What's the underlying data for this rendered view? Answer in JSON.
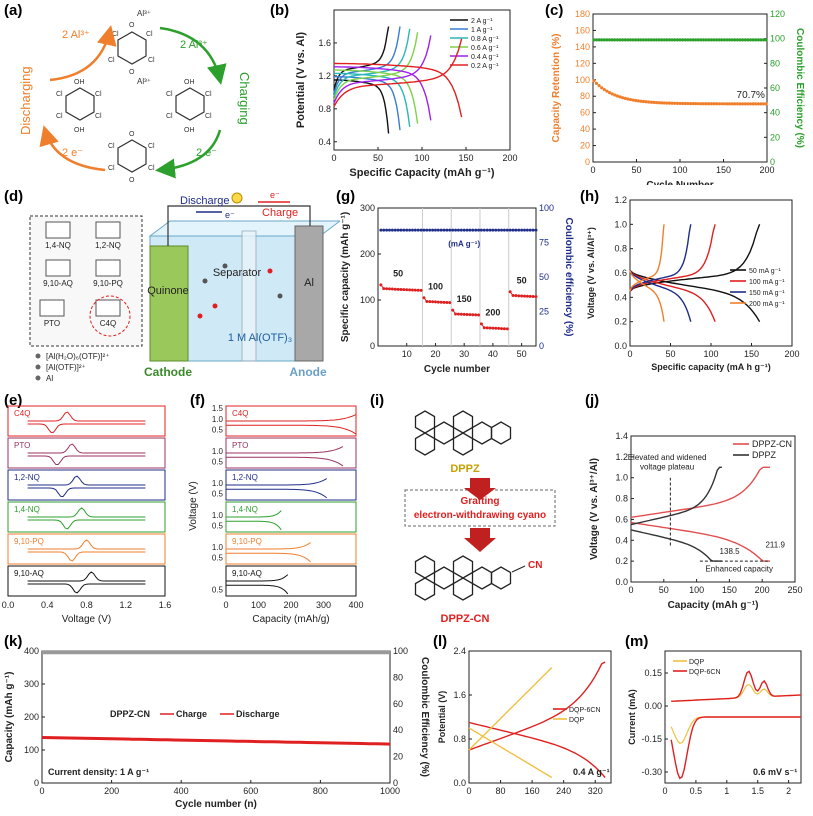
{
  "panels": {
    "a": "(a)",
    "b": "(b)",
    "c": "(c)",
    "d": "(d)",
    "e": "(e)",
    "f": "(f)",
    "g": "(g)",
    "h": "(h)",
    "i": "(i)",
    "j": "(j)",
    "k": "(k)",
    "l": "(l)",
    "m": "(m)"
  },
  "colors": {
    "orange": "#f07f2d",
    "green": "#2ca02c",
    "red": "#e02020",
    "navy": "#1f2d8a",
    "black": "#111111"
  },
  "scheme_a": {
    "discharging": "Discharging",
    "charging": "Charging",
    "al_top_left": "2 Al³⁺",
    "al_top_right": "2 Al³⁺",
    "e_bottom_left": "2 e⁻",
    "e_bottom_right": "2 e⁻",
    "al_complex": "Al³⁺"
  },
  "chart_data": [
    {
      "id": "b",
      "type": "line",
      "title": "",
      "xlabel": "Specific Capacity (mAh g⁻¹)",
      "ylabel": "Potential (V vs. Al)",
      "xlim": [
        0,
        200
      ],
      "ylim": [
        0.3,
        2.0
      ],
      "xticks": [
        0,
        50,
        100,
        150,
        200
      ],
      "yticks": [
        0.4,
        0.8,
        1.2,
        1.6
      ],
      "series": [
        {
          "name": "2 A g⁻¹",
          "color": "#111111",
          "charge_max": 62,
          "discharge_max": 62
        },
        {
          "name": "1 A g⁻¹",
          "color": "#3a7bd5",
          "charge_max": 75,
          "discharge_max": 75
        },
        {
          "name": "0.8 A g⁻¹",
          "color": "#2ab7b7",
          "charge_max": 86,
          "discharge_max": 86
        },
        {
          "name": "0.6 A g⁻¹",
          "color": "#7fd14a",
          "charge_max": 95,
          "discharge_max": 95
        },
        {
          "name": "0.4 A g⁻¹",
          "color": "#a020f0",
          "charge_max": 110,
          "discharge_max": 110
        },
        {
          "name": "0.2 A g⁻¹",
          "color": "#e02020",
          "charge_max": 145,
          "discharge_max": 145
        }
      ]
    },
    {
      "id": "c",
      "type": "scatter",
      "xlabel": "Cycle Number",
      "ylabel": "Capacity Retention (%)",
      "y2label": "Coulombic Efficiency (%)",
      "xlim": [
        0,
        200
      ],
      "ylim": [
        0,
        180
      ],
      "y2lim": [
        0,
        120
      ],
      "xticks": [
        0,
        50,
        100,
        150,
        200
      ],
      "yticks": [
        0,
        20,
        40,
        60,
        80,
        100,
        120,
        140,
        160,
        180
      ],
      "y2ticks": [
        0,
        20,
        40,
        60,
        80,
        100,
        120
      ],
      "annotation": "70.7%",
      "series": [
        {
          "name": "Capacity Retention",
          "axis": "left",
          "color": "#f07f2d",
          "start": 100,
          "end": 70.7
        },
        {
          "name": "Coulombic Efficiency",
          "axis": "right",
          "color": "#2ca02c",
          "value": 99
        }
      ]
    },
    {
      "id": "g",
      "type": "scatter",
      "xlabel": "Cycle number",
      "ylabel": "Specific capacity (mAh g⁻¹)",
      "y2label": "Coulombic efficiency (%)",
      "xlim": [
        0,
        55
      ],
      "ylim": [
        0,
        300
      ],
      "y2lim": [
        0,
        100
      ],
      "xticks": [
        10,
        20,
        30,
        40,
        50
      ],
      "yticks": [
        0,
        100,
        200,
        300
      ],
      "y2ticks": [
        0,
        25,
        50,
        75,
        100
      ],
      "unit_label": "(mA g⁻¹)",
      "rate_labels": [
        {
          "text": "50",
          "cycle": 7
        },
        {
          "text": "100",
          "cycle": 20
        },
        {
          "text": "150",
          "cycle": 30
        },
        {
          "text": "200",
          "cycle": 40
        },
        {
          "text": "50",
          "cycle": 50
        }
      ],
      "capacity_segments": [
        {
          "from": 1,
          "to": 15,
          "value": 125
        },
        {
          "from": 16,
          "to": 25,
          "value": 97
        },
        {
          "from": 26,
          "to": 35,
          "value": 70
        },
        {
          "from": 36,
          "to": 45,
          "value": 40
        },
        {
          "from": 46,
          "to": 55,
          "value": 110
        }
      ],
      "ce_value": 84
    },
    {
      "id": "h",
      "type": "line",
      "xlabel": "Specific capacity (mA h g⁻¹)",
      "ylabel": "Voltage (V vs. Al/Al³⁺)",
      "xlim": [
        0,
        200
      ],
      "ylim": [
        0,
        1.2
      ],
      "xticks": [
        0,
        50,
        100,
        150,
        200
      ],
      "yticks": [
        0.0,
        0.2,
        0.4,
        0.6,
        0.8,
        1.0,
        1.2
      ],
      "series": [
        {
          "name": "50 mA g⁻¹",
          "color": "#111111",
          "cap": 160
        },
        {
          "name": "100 mA g⁻¹",
          "color": "#e02020",
          "cap": 105
        },
        {
          "name": "150 mA g⁻¹",
          "color": "#1f2d8a",
          "cap": 75
        },
        {
          "name": "200 mA g⁻¹",
          "color": "#f07f2d",
          "cap": 42
        }
      ]
    },
    {
      "id": "e",
      "type": "line",
      "xlabel": "Voltage (V)",
      "xlim": [
        0,
        1.6
      ],
      "xticks": [
        0.0,
        0.4,
        0.8,
        1.2,
        1.6
      ],
      "series": [
        {
          "name": "C4Q",
          "color": "#e02020"
        },
        {
          "name": "PTO",
          "color": "#9b3060"
        },
        {
          "name": "1,2-NQ",
          "color": "#1f2d8a"
        },
        {
          "name": "1,4-NQ",
          "color": "#2ca02c"
        },
        {
          "name": "9,10-PQ",
          "color": "#f07f2d"
        },
        {
          "name": "9,10-AQ",
          "color": "#111111"
        }
      ]
    },
    {
      "id": "f",
      "type": "line",
      "xlabel": "Capacity (mAh/g)",
      "ylabel": "Voltage (V)",
      "xlim": [
        0,
        400
      ],
      "xticks": [
        0,
        100,
        200,
        300,
        400
      ],
      "series": [
        {
          "name": "C4Q",
          "color": "#e02020",
          "yticks": [
            0.5,
            1.0,
            1.5
          ],
          "cap": 400
        },
        {
          "name": "PTO",
          "color": "#9b3060",
          "yticks": [
            0.5,
            1.0
          ],
          "cap": 360
        },
        {
          "name": "1,2-NQ",
          "color": "#1f2d8a",
          "yticks": [
            0.5,
            1.0
          ],
          "cap": 310
        },
        {
          "name": "1,4-NQ",
          "color": "#2ca02c",
          "yticks": [
            0.5,
            1.0
          ],
          "cap": 170
        },
        {
          "name": "9,10-PQ",
          "color": "#f07f2d",
          "yticks": [
            0.5,
            1.0
          ],
          "cap": 260
        },
        {
          "name": "9,10-AQ",
          "color": "#111111",
          "yticks": [
            0.5
          ],
          "cap": 190
        }
      ]
    },
    {
      "id": "j",
      "type": "line",
      "xlabel": "Capacity (mAh g⁻¹)",
      "ylabel": "Voltage (V vs. Al³⁺/Al)",
      "xlim": [
        0,
        250
      ],
      "ylim": [
        0.0,
        1.4
      ],
      "xticks": [
        0,
        50,
        100,
        150,
        200,
        250
      ],
      "yticks": [
        0.0,
        0.2,
        0.4,
        0.6,
        0.8,
        1.0,
        1.2,
        1.4
      ],
      "annotations": [
        "Elevated and widened",
        "voltage plateau",
        "138.5",
        "211.9",
        "Enhanced capacity"
      ],
      "series": [
        {
          "name": "DPPZ-CN",
          "color": "#e05050",
          "cap": 211.9
        },
        {
          "name": "DPPZ",
          "color": "#333333",
          "cap": 138.5
        }
      ]
    },
    {
      "id": "k",
      "type": "line",
      "xlabel": "Cycle number (n)",
      "ylabel": "Capacity (mAh g⁻¹)",
      "y2label": "Coulombic Efficiency (%)",
      "xlim": [
        0,
        1000
      ],
      "ylim": [
        0,
        400
      ],
      "y2lim": [
        0,
        100
      ],
      "xticks": [
        0,
        200,
        400,
        600,
        800,
        1000
      ],
      "yticks": [
        0,
        100,
        200,
        300,
        400
      ],
      "y2ticks": [
        0,
        20,
        40,
        60,
        80,
        100
      ],
      "legend_title": "DPPZ-CN",
      "annotation": "Current density: 1 A g⁻¹",
      "series": [
        {
          "name": "Charge",
          "color": "#e02020"
        },
        {
          "name": "Discharge",
          "color": "#e02020"
        },
        {
          "name": "CE",
          "color": "#888888",
          "value": 99
        }
      ],
      "capacity_start": 138,
      "capacity_end": 118
    },
    {
      "id": "l",
      "type": "line",
      "xlabel": "",
      "ylabel": "Potential (V)",
      "xlim": [
        0,
        360
      ],
      "ylim": [
        0,
        2.4
      ],
      "xticks": [
        0,
        80,
        160,
        240,
        320
      ],
      "yticks": [
        0.0,
        0.8,
        1.6,
        2.4
      ],
      "annotation": "0.4 A g⁻¹",
      "series": [
        {
          "name": "DQP-6CN",
          "color": "#e02020",
          "cap": 345
        },
        {
          "name": "DQP",
          "color": "#f0c040",
          "cap": 210
        }
      ]
    },
    {
      "id": "m",
      "type": "line",
      "xlabel": "",
      "ylabel": "Current (mA)",
      "xlim": [
        0,
        2.2
      ],
      "ylim": [
        -0.35,
        0.25
      ],
      "xticks": [
        0.0,
        0.5,
        1.0,
        1.5,
        2.0
      ],
      "yticks": [
        -0.3,
        -0.15,
        0.0,
        0.15
      ],
      "annotation": "0.6 mV s⁻¹",
      "series": [
        {
          "name": "DQP",
          "color": "#f0c040"
        },
        {
          "name": "DQP-6CN",
          "color": "#e02020"
        }
      ]
    }
  ],
  "panel_d": {
    "discharge": "Discharge",
    "charge": "Charge",
    "eminus_left": "e⁻",
    "eminus_right": "e⁻",
    "quinone": "Quinone",
    "separator": "Separator",
    "al": "Al",
    "electrolyte": "1 M Al(OTF)₃",
    "cathode": "Cathode",
    "anode": "Anode",
    "molecules": [
      "1,4-NQ",
      "1,2-NQ",
      "9,10-AQ",
      "9,10-PQ",
      "PTO",
      "C4Q"
    ],
    "legend": [
      "[Al(H₂O)₆(OTF)]²⁺",
      "[Al(OTF)]²⁺",
      "Al"
    ]
  },
  "panel_i": {
    "dppz": "DPPZ",
    "grafting1": "Grafting",
    "grafting2": "electron-withdrawing cyano",
    "dppzcn": "DPPZ-CN",
    "cn": "CN"
  }
}
